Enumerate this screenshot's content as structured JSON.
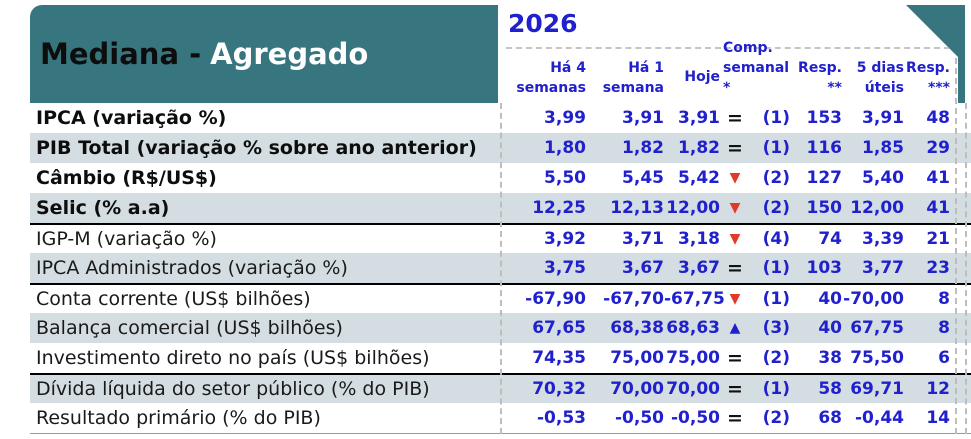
{
  "header": {
    "title_black": "Mediana -",
    "title_white": "Agregado",
    "year": "2026"
  },
  "columns": [
    {
      "key": "ha4",
      "line1": "Há 4",
      "line2": "semanas"
    },
    {
      "key": "ha1",
      "line1": "Há 1",
      "line2": "semana"
    },
    {
      "key": "hoje",
      "line1": "Hoje",
      "line2": ""
    },
    {
      "key": "comp",
      "line1": "Comp.",
      "line2": "semanal *"
    },
    {
      "key": "resp2",
      "line1": "Resp.",
      "line2": "**"
    },
    {
      "key": "dias5",
      "line1": "5 dias",
      "line2": "úteis"
    },
    {
      "key": "resp3",
      "line1": "Resp.",
      "line2": "***"
    }
  ],
  "symbols": {
    "equal": "=",
    "down": "▼",
    "up": "▲"
  },
  "rows": [
    {
      "label": "IPCA (variação %)",
      "emphasis": true,
      "section_above": false,
      "ha4": "3,99",
      "ha1": "3,91",
      "hoje": "3,91",
      "comp_dir": "equal",
      "comp_count": "(1)",
      "resp2": "153",
      "dias5": "3,91",
      "resp3": "48"
    },
    {
      "label": "PIB Total (variação % sobre ano anterior)",
      "emphasis": true,
      "section_above": false,
      "ha4": "1,80",
      "ha1": "1,82",
      "hoje": "1,82",
      "comp_dir": "equal",
      "comp_count": "(1)",
      "resp2": "116",
      "dias5": "1,85",
      "resp3": "29"
    },
    {
      "label": "Câmbio (R$/US$)",
      "emphasis": true,
      "section_above": false,
      "ha4": "5,50",
      "ha1": "5,45",
      "hoje": "5,42",
      "comp_dir": "down",
      "comp_count": "(2)",
      "resp2": "127",
      "dias5": "5,40",
      "resp3": "41"
    },
    {
      "label": "Selic (% a.a)",
      "emphasis": true,
      "section_above": false,
      "ha4": "12,25",
      "ha1": "12,13",
      "hoje": "12,00",
      "comp_dir": "down",
      "comp_count": "(2)",
      "resp2": "150",
      "dias5": "12,00",
      "resp3": "41"
    },
    {
      "label": "IGP-M (variação %)",
      "emphasis": false,
      "section_above": true,
      "ha4": "3,92",
      "ha1": "3,71",
      "hoje": "3,18",
      "comp_dir": "down",
      "comp_count": "(4)",
      "resp2": "74",
      "dias5": "3,39",
      "resp3": "21"
    },
    {
      "label": "IPCA Administrados (variação %)",
      "emphasis": false,
      "section_above": false,
      "ha4": "3,75",
      "ha1": "3,67",
      "hoje": "3,67",
      "comp_dir": "equal",
      "comp_count": "(1)",
      "resp2": "103",
      "dias5": "3,77",
      "resp3": "23"
    },
    {
      "label": "Conta corrente (US$ bilhões)",
      "emphasis": false,
      "section_above": true,
      "ha4": "-67,90",
      "ha1": "-67,70",
      "hoje": "-67,75",
      "comp_dir": "down",
      "comp_count": "(1)",
      "resp2": "40",
      "dias5": "-70,00",
      "resp3": "8"
    },
    {
      "label": "Balança comercial (US$ bilhões)",
      "emphasis": false,
      "section_above": false,
      "ha4": "67,65",
      "ha1": "68,38",
      "hoje": "68,63",
      "comp_dir": "up",
      "comp_count": "(3)",
      "resp2": "40",
      "dias5": "67,75",
      "resp3": "8"
    },
    {
      "label": "Investimento direto no país (US$ bilhões)",
      "emphasis": false,
      "section_above": false,
      "ha4": "74,35",
      "ha1": "75,00",
      "hoje": "75,00",
      "comp_dir": "equal",
      "comp_count": "(2)",
      "resp2": "38",
      "dias5": "75,50",
      "resp3": "6"
    },
    {
      "label": "Dívida líquida do setor público (% do PIB)",
      "emphasis": false,
      "section_above": true,
      "ha4": "70,32",
      "ha1": "70,00",
      "hoje": "70,00",
      "comp_dir": "equal",
      "comp_count": "(1)",
      "resp2": "58",
      "dias5": "69,71",
      "resp3": "12"
    },
    {
      "label": "Resultado primário (% do PIB)",
      "emphasis": false,
      "section_above": false,
      "ha4": "-0,53",
      "ha1": "-0,50",
      "hoje": "-0,50",
      "comp_dir": "equal",
      "comp_count": "(2)",
      "resp2": "68",
      "dias5": "-0,44",
      "resp3": "14"
    }
  ],
  "colors": {
    "teal": "#37767F",
    "stripe": "#D4DEE2",
    "value_blue": "#2020CC",
    "down_red": "#E13A28",
    "up_blue": "#2020CC",
    "section_line": "#000000"
  }
}
